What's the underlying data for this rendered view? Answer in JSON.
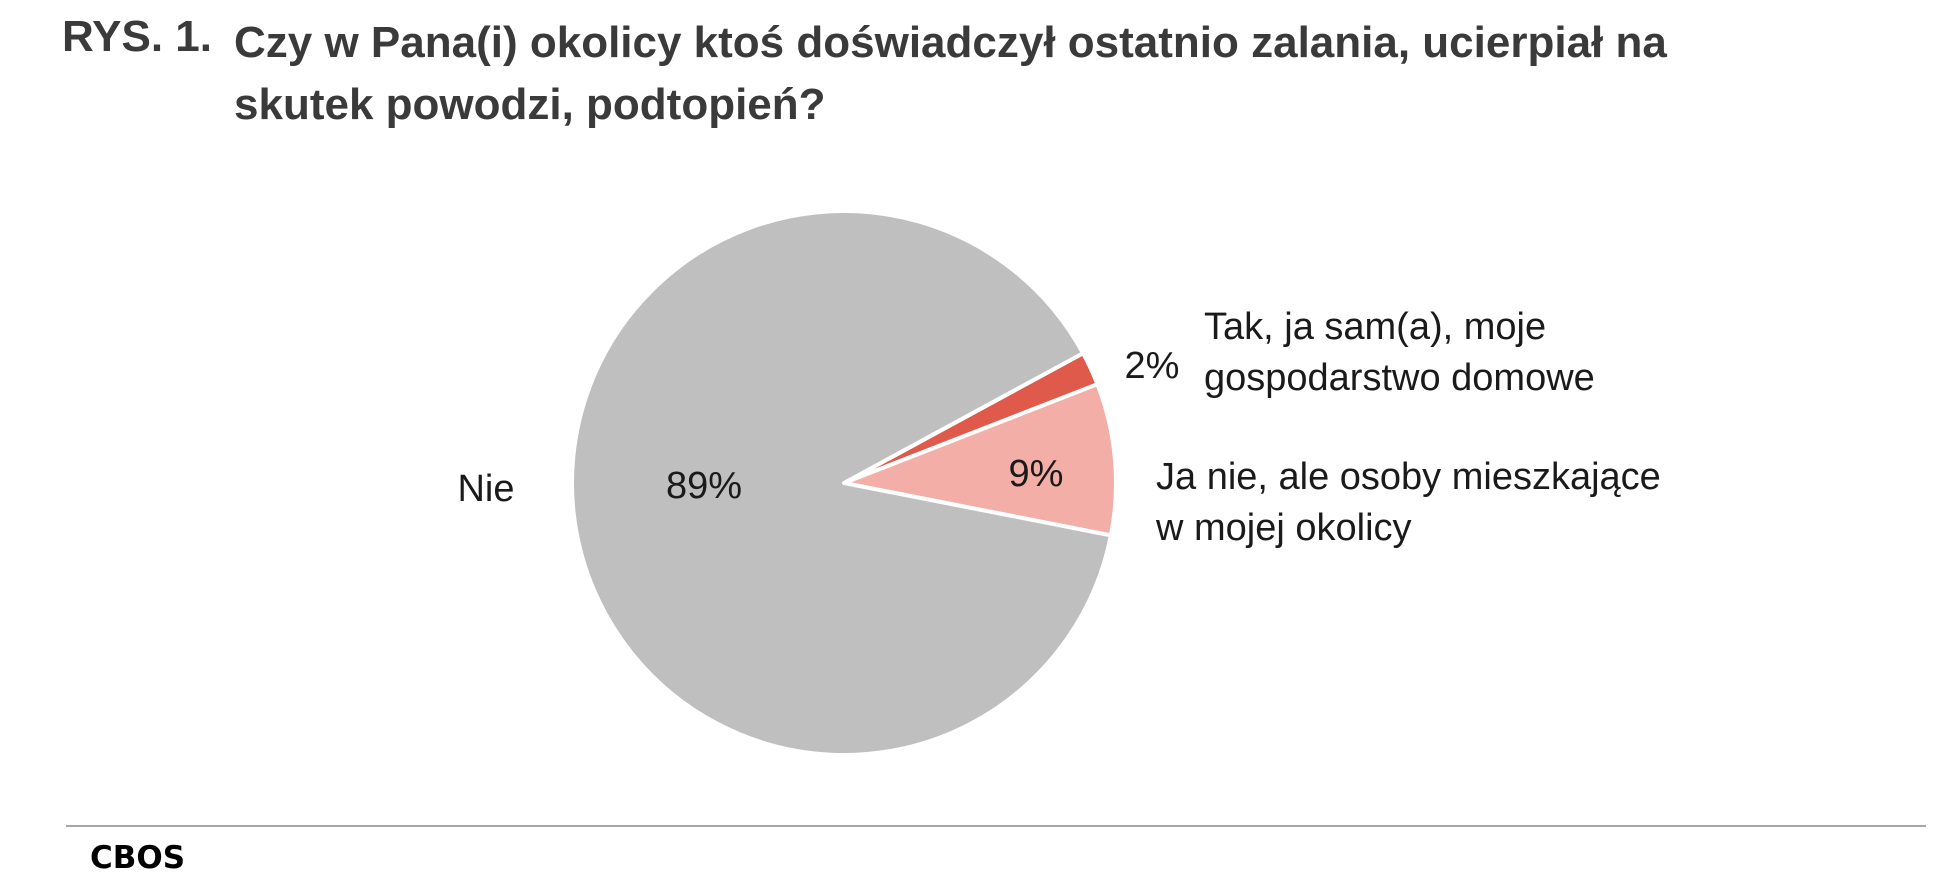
{
  "title": {
    "prefix": "RYS. 1.",
    "text": "Czy w Pana(i) okolicy ktoś doświadczył ostatnio zalania, ucierpiał na skutek powodzi, podtopień?"
  },
  "source": "CBOS",
  "chart_data": {
    "type": "pie",
    "slices": [
      {
        "label_lines": [
          "Tak, ja sam(a), moje",
          "gospodarstwo domowe"
        ],
        "value": 2,
        "value_label": "2%",
        "color": "#e05a4c"
      },
      {
        "label_lines": [
          "Ja nie, ale osoby mieszkające",
          "w mojej okolicy"
        ],
        "value": 9,
        "value_label": "9%",
        "color": "#f3aea8"
      },
      {
        "label_lines": [
          "Nie"
        ],
        "value": 89,
        "value_label": "89%",
        "color": "#bfbfbf"
      }
    ]
  }
}
